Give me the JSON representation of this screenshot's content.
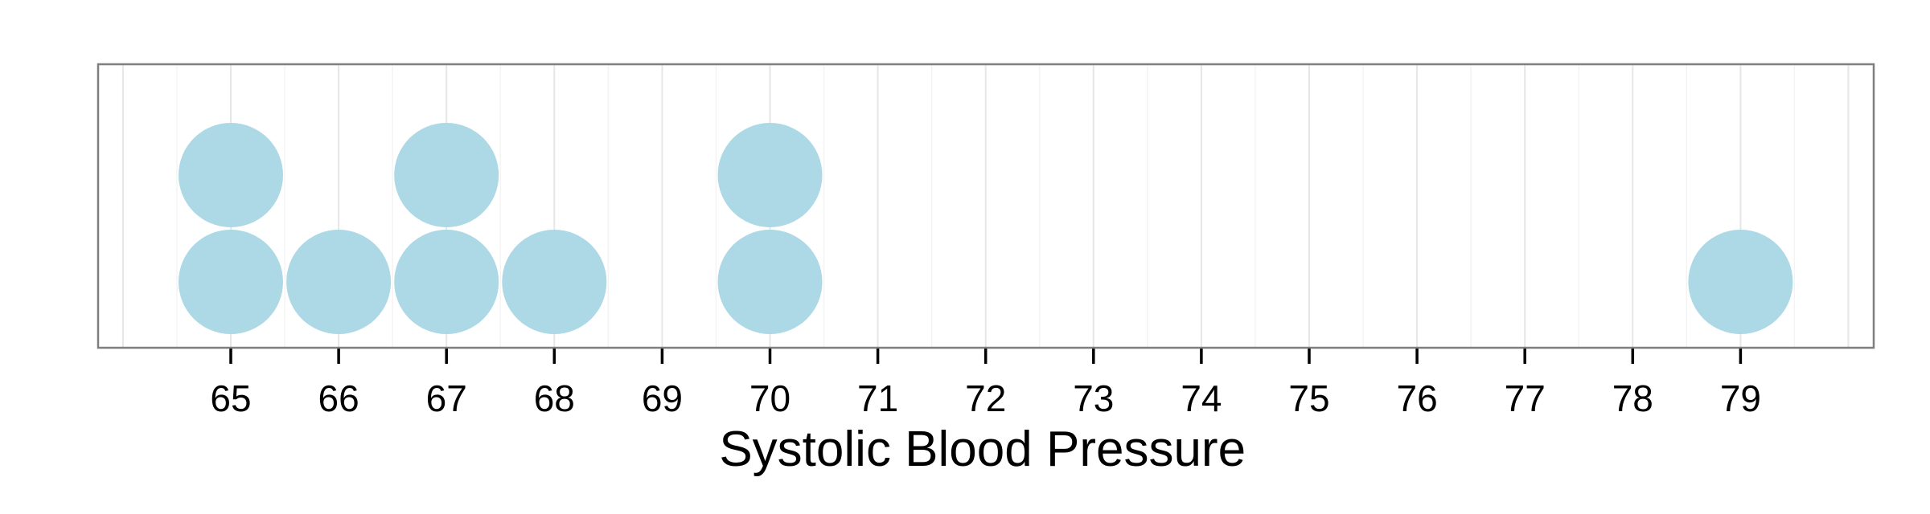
{
  "chart_data": {
    "type": "dot",
    "title": "",
    "xlabel": "Systolic Blood Pressure",
    "ylabel": "",
    "xlim": [
      63.8,
      80.3
    ],
    "x_ticks": [
      65,
      66,
      67,
      68,
      69,
      70,
      71,
      72,
      73,
      74,
      75,
      76,
      77,
      78,
      79
    ],
    "x_tick_labels": [
      "65",
      "66",
      "67",
      "68",
      "69",
      "70",
      "71",
      "72",
      "73",
      "74",
      "75",
      "76",
      "77",
      "78",
      "79"
    ],
    "values": [
      65,
      65,
      66,
      67,
      67,
      68,
      70,
      70,
      79
    ],
    "counts": [
      {
        "x": 65,
        "count": 2
      },
      {
        "x": 66,
        "count": 1
      },
      {
        "x": 67,
        "count": 2
      },
      {
        "x": 68,
        "count": 1
      },
      {
        "x": 70,
        "count": 2
      },
      {
        "x": 79,
        "count": 1
      }
    ],
    "y_axis_shown": false,
    "grid": true,
    "legend": "none",
    "dot_color": "#add8e6",
    "panel_border_color": "#7f7f7f",
    "grid_major_color": "#e6e6e6",
    "grid_minor_color": "#f3f3f3"
  }
}
